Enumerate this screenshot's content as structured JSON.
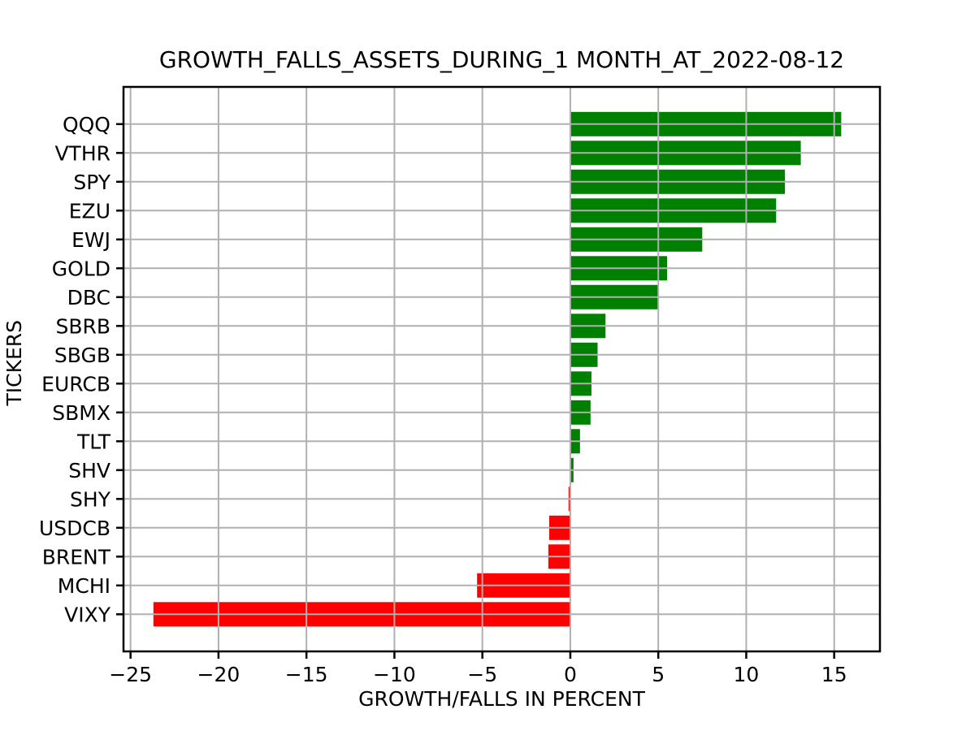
{
  "chart_data": {
    "type": "bar",
    "orientation": "horizontal",
    "title": "GROWTH_FALLS_ASSETS_DURING_1 MONTH_AT_2022-08-12",
    "xlabel": "GROWTH/FALLS IN PERCENT",
    "ylabel": "TICKERS",
    "categories": [
      "QQQ",
      "VTHR",
      "SPY",
      "EZU",
      "EWJ",
      "GOLD",
      "DBC",
      "SBRB",
      "SBGB",
      "EURCB",
      "SBMX",
      "TLT",
      "SHV",
      "SHY",
      "USDCB",
      "BRENT",
      "MCHI",
      "VIXY"
    ],
    "values": [
      15.4,
      13.1,
      12.2,
      11.7,
      7.5,
      5.5,
      5.0,
      2.0,
      1.55,
      1.2,
      1.15,
      0.55,
      0.18,
      -0.1,
      -1.2,
      -1.25,
      -5.3,
      -23.7
    ],
    "positive_color": "#008000",
    "negative_color": "#ff0000",
    "grid": true,
    "grid_color": "#b0b0b0",
    "spine_color": "#000000",
    "background_color": "#ffffff",
    "xlim": [
      -25.4,
      17.6
    ],
    "xticks": [
      -25,
      -20,
      -15,
      -10,
      -5,
      0,
      5,
      10,
      15
    ],
    "xtick_labels": [
      "−25",
      "−20",
      "−15",
      "−10",
      "−5",
      "0",
      "5",
      "10",
      "15"
    ],
    "legend": "none"
  }
}
